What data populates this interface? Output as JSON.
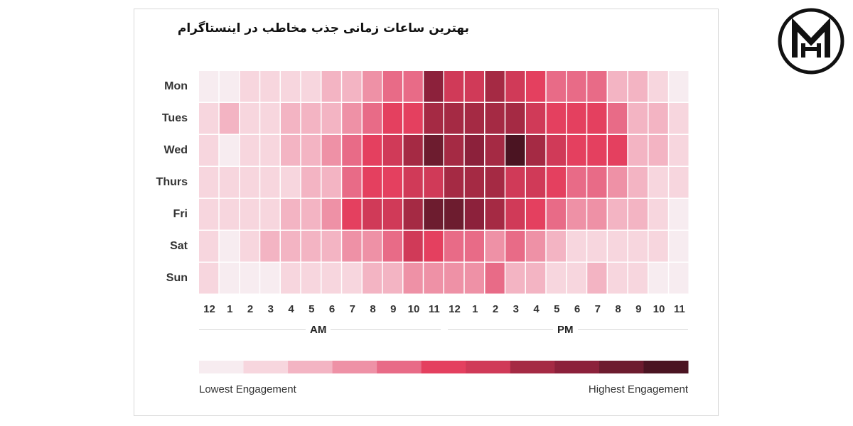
{
  "title": "بهترین ساعات زمانی جذب مخاطب در اینستاگرام",
  "logo": {
    "icon": "m-monogram-logo"
  },
  "chart_data": {
    "type": "heatmap",
    "rows": [
      "Mon",
      "Tues",
      "Wed",
      "Thurs",
      "Fri",
      "Sat",
      "Sun"
    ],
    "columns": [
      "12",
      "1",
      "2",
      "3",
      "4",
      "5",
      "6",
      "7",
      "8",
      "9",
      "10",
      "11",
      "12",
      "1",
      "2",
      "3",
      "4",
      "5",
      "6",
      "7",
      "8",
      "9",
      "10",
      "11"
    ],
    "period_labels": [
      "AM",
      "PM"
    ],
    "values": [
      [
        1,
        1,
        2,
        2,
        2,
        2,
        3,
        3,
        4,
        5,
        5,
        9,
        7,
        7,
        8,
        7,
        6,
        5,
        5,
        5,
        3,
        3,
        2,
        1
      ],
      [
        2,
        3,
        2,
        2,
        3,
        3,
        3,
        4,
        5,
        6,
        6,
        8,
        8,
        8,
        8,
        8,
        7,
        6,
        6,
        6,
        5,
        3,
        3,
        2
      ],
      [
        2,
        1,
        2,
        2,
        3,
        3,
        4,
        5,
        6,
        7,
        8,
        10,
        8,
        9,
        8,
        11,
        8,
        7,
        6,
        6,
        6,
        3,
        3,
        2
      ],
      [
        2,
        2,
        2,
        2,
        2,
        3,
        3,
        5,
        6,
        6,
        7,
        7,
        8,
        8,
        8,
        7,
        7,
        6,
        5,
        5,
        4,
        3,
        2,
        2
      ],
      [
        2,
        2,
        2,
        2,
        3,
        3,
        4,
        6,
        7,
        7,
        8,
        10,
        10,
        9,
        8,
        7,
        6,
        5,
        4,
        4,
        3,
        3,
        2,
        1
      ],
      [
        2,
        1,
        2,
        3,
        3,
        3,
        3,
        4,
        4,
        5,
        7,
        6,
        5,
        5,
        4,
        5,
        4,
        3,
        2,
        2,
        2,
        2,
        2,
        1
      ],
      [
        2,
        1,
        1,
        1,
        2,
        2,
        2,
        2,
        3,
        3,
        4,
        4,
        4,
        4,
        5,
        3,
        3,
        2,
        2,
        3,
        2,
        2,
        1,
        1
      ]
    ],
    "scale_min": 1,
    "scale_max": 11,
    "color_scale": [
      "#f7ecf0",
      "#f7d6de",
      "#f3b4c3",
      "#ee91a6",
      "#e86b87",
      "#e4405f",
      "#d03a58",
      "#a52a44",
      "#8c213b",
      "#6d1c2f",
      "#4b1422"
    ],
    "legend": {
      "low_label": "Lowest Engagement",
      "high_label": "Highest Engagement"
    }
  }
}
